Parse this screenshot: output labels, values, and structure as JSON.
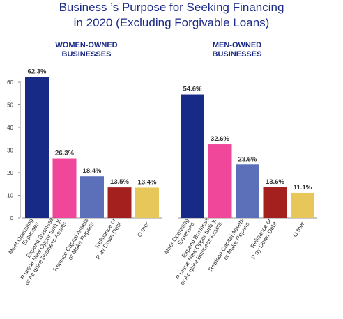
{
  "title_lines": [
    "Business ’s Purpose for Seeking Financing",
    "in 2020 (Excluding Forgivable Loans)"
  ],
  "colors": {
    "title": "#1b2a85",
    "bars": [
      "#172a86",
      "#f0479a",
      "#5b70b8",
      "#a3201f",
      "#e8c75a"
    ],
    "axis": "#6b6b6b",
    "text": "#333333"
  },
  "chart_data": [
    {
      "type": "bar",
      "title": "WOMEN-OWNED BUSINESSES",
      "title_lines": [
        "WOMEN-OWNED",
        "BUSINESSES"
      ],
      "categories": [
        [
          "Meet Operating",
          "Expenses"
        ],
        [
          "Expand Business ,",
          "P ursue New Oppor tunit y,",
          "or Ac quire Business Assets"
        ],
        [
          "Replace Capital Assets",
          "or Make Repairs"
        ],
        [
          "Refinance or",
          "P ay Down Debt"
        ],
        [
          "O ther"
        ]
      ],
      "values": [
        62.3,
        26.3,
        18.4,
        13.5,
        13.4
      ],
      "value_labels": [
        "62.3%",
        "26.3%",
        "18.4%",
        "13.5%",
        "13.4%"
      ],
      "yticks": [
        0,
        10,
        20,
        30,
        40,
        50,
        60
      ],
      "ylim": [
        0,
        65
      ],
      "grid": false
    },
    {
      "type": "bar",
      "title": "MEN-OWNED BUSINESSES",
      "title_lines": [
        "MEN-OWNED",
        "BUSINESSES"
      ],
      "categories": [
        [
          "Meet Operating",
          "Expenses"
        ],
        [
          "Expand Business ,",
          "P ursue New Oppor tunit y,",
          "or Ac quire Business Assets"
        ],
        [
          "Replace Capital Assets",
          "or Make Repairs"
        ],
        [
          "Refinance or",
          "P ay Down Debt"
        ],
        [
          "O ther"
        ]
      ],
      "values": [
        54.6,
        32.6,
        23.6,
        13.6,
        11.1
      ],
      "value_labels": [
        "54.6%",
        "32.6%",
        "23.6%",
        "13.6%",
        "11.1%"
      ],
      "ylim": [
        0,
        65
      ],
      "grid": false
    }
  ]
}
